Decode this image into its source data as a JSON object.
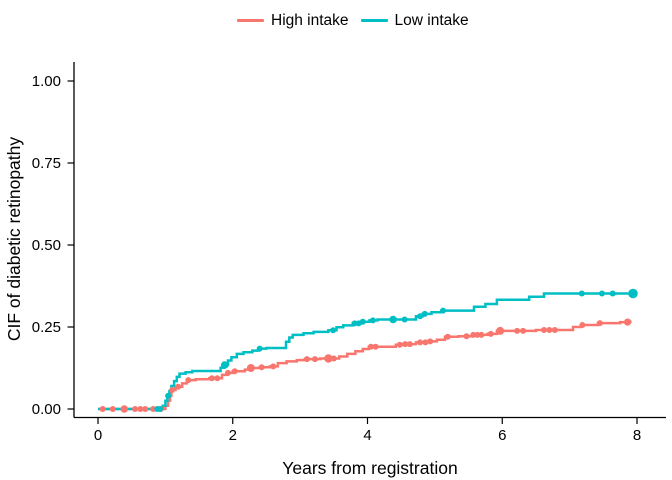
{
  "legend": {
    "items": [
      {
        "label": "High intake",
        "color": "#F8766D"
      },
      {
        "label": "Low intake",
        "color": "#00BFC4"
      }
    ]
  },
  "chart_data": {
    "type": "line",
    "subtype": "step",
    "title": "",
    "xlabel": "Years from registration",
    "ylabel": "CIF of diabetic retinopathy",
    "xlim": [
      0,
      8
    ],
    "ylim": [
      0,
      1
    ],
    "x_ticks": [
      "0",
      "2",
      "4",
      "6",
      "8"
    ],
    "x_tick_values": [
      0,
      2,
      4,
      6,
      8
    ],
    "y_ticks": [
      "0.00",
      "0.25",
      "0.50",
      "0.75",
      "1.00"
    ],
    "y_tick_values": [
      0,
      0.25,
      0.5,
      0.75,
      1
    ],
    "grid": false,
    "legend_position": "top",
    "series": [
      {
        "name": "High intake",
        "color": "#F8766D",
        "step_points": [
          [
            0,
            0
          ],
          [
            1.0,
            0.01
          ],
          [
            1.04,
            0.025
          ],
          [
            1.07,
            0.04
          ],
          [
            1.09,
            0.058
          ],
          [
            1.15,
            0.063
          ],
          [
            1.18,
            0.068
          ],
          [
            1.25,
            0.078
          ],
          [
            1.32,
            0.088
          ],
          [
            1.45,
            0.091
          ],
          [
            1.65,
            0.094
          ],
          [
            1.84,
            0.104
          ],
          [
            1.92,
            0.11
          ],
          [
            2.0,
            0.115
          ],
          [
            2.18,
            0.12
          ],
          [
            2.25,
            0.125
          ],
          [
            2.4,
            0.127
          ],
          [
            2.55,
            0.13
          ],
          [
            2.67,
            0.14
          ],
          [
            2.8,
            0.145
          ],
          [
            2.95,
            0.149
          ],
          [
            3.07,
            0.152
          ],
          [
            3.3,
            0.154
          ],
          [
            3.58,
            0.16
          ],
          [
            3.7,
            0.168
          ],
          [
            3.82,
            0.176
          ],
          [
            3.93,
            0.183
          ],
          [
            4.02,
            0.19
          ],
          [
            4.42,
            0.196
          ],
          [
            4.53,
            0.198
          ],
          [
            4.72,
            0.203
          ],
          [
            4.88,
            0.206
          ],
          [
            5.03,
            0.211
          ],
          [
            5.15,
            0.22
          ],
          [
            5.35,
            0.222
          ],
          [
            5.55,
            0.226
          ],
          [
            5.78,
            0.229
          ],
          [
            5.92,
            0.238
          ],
          [
            6.5,
            0.241
          ],
          [
            7.05,
            0.25
          ],
          [
            7.17,
            0.256
          ],
          [
            7.42,
            0.262
          ],
          [
            7.75,
            0.265
          ],
          [
            7.88,
            0.266
          ],
          [
            7.92,
            0.266
          ]
        ],
        "markers": [
          [
            0.07
          ],
          [
            0.22
          ],
          [
            0.39,
            3.8
          ],
          [
            0.55
          ],
          [
            0.63
          ],
          [
            0.7
          ],
          [
            0.82
          ],
          [
            0.93
          ],
          [
            1.1
          ],
          [
            1.19
          ],
          [
            1.34
          ],
          [
            1.69
          ],
          [
            1.77
          ],
          [
            1.93
          ],
          [
            2.03
          ],
          [
            2.27,
            4
          ],
          [
            2.43
          ],
          [
            2.6
          ],
          [
            3.1
          ],
          [
            3.22
          ],
          [
            3.42,
            4.2
          ],
          [
            3.5
          ],
          [
            4.05
          ],
          [
            4.12
          ],
          [
            4.48
          ],
          [
            4.56
          ],
          [
            4.63
          ],
          [
            4.78
          ],
          [
            4.86
          ],
          [
            4.93
          ],
          [
            5.19
          ],
          [
            5.47
          ],
          [
            5.57
          ],
          [
            5.63
          ],
          [
            5.69
          ],
          [
            5.83
          ],
          [
            5.97,
            4
          ],
          [
            6.22
          ],
          [
            6.31
          ],
          [
            6.62
          ],
          [
            6.7
          ],
          [
            6.78
          ],
          [
            7.19
          ],
          [
            7.45
          ],
          [
            7.86,
            3.6
          ]
        ]
      },
      {
        "name": "Low intake",
        "color": "#00BFC4",
        "step_points": [
          [
            0,
            0
          ],
          [
            0.96,
            0.01
          ],
          [
            1.0,
            0.025
          ],
          [
            1.03,
            0.04
          ],
          [
            1.06,
            0.055
          ],
          [
            1.09,
            0.07
          ],
          [
            1.13,
            0.085
          ],
          [
            1.17,
            0.098
          ],
          [
            1.21,
            0.108
          ],
          [
            1.3,
            0.112
          ],
          [
            1.4,
            0.116
          ],
          [
            1.82,
            0.126
          ],
          [
            1.87,
            0.134
          ],
          [
            1.93,
            0.148
          ],
          [
            1.98,
            0.158
          ],
          [
            2.06,
            0.168
          ],
          [
            2.16,
            0.173
          ],
          [
            2.29,
            0.178
          ],
          [
            2.38,
            0.184
          ],
          [
            2.5,
            0.186
          ],
          [
            2.79,
            0.205
          ],
          [
            2.84,
            0.218
          ],
          [
            2.89,
            0.226
          ],
          [
            3.05,
            0.231
          ],
          [
            3.2,
            0.235
          ],
          [
            3.42,
            0.24
          ],
          [
            3.54,
            0.249
          ],
          [
            3.64,
            0.255
          ],
          [
            3.78,
            0.261
          ],
          [
            3.9,
            0.266
          ],
          [
            4.03,
            0.27
          ],
          [
            4.15,
            0.273
          ],
          [
            4.72,
            0.283
          ],
          [
            4.82,
            0.29
          ],
          [
            4.95,
            0.295
          ],
          [
            5.1,
            0.3
          ],
          [
            5.58,
            0.312
          ],
          [
            5.75,
            0.32
          ],
          [
            5.92,
            0.333
          ],
          [
            6.4,
            0.342
          ],
          [
            6.62,
            0.352
          ],
          [
            8.0,
            0.352
          ]
        ],
        "markers": [
          [
            0.88
          ],
          [
            0.92
          ],
          [
            1.04
          ],
          [
            1.88,
            3.8
          ],
          [
            2.4
          ],
          [
            3.49
          ],
          [
            3.81
          ],
          [
            3.87
          ],
          [
            3.93
          ],
          [
            4.08
          ],
          [
            4.38,
            3.8
          ],
          [
            4.55
          ],
          [
            4.78
          ],
          [
            4.85
          ],
          [
            5.12
          ],
          [
            7.18
          ],
          [
            7.48
          ],
          [
            7.64
          ],
          [
            7.94,
            4.8
          ]
        ]
      }
    ]
  }
}
